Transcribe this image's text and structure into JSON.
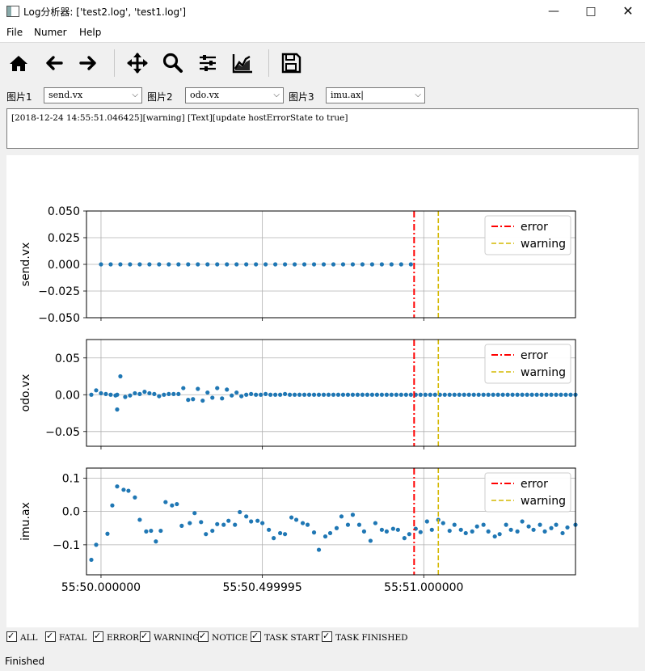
{
  "window": {
    "title": "Log分析器: ['test2.log', 'test1.log']"
  },
  "menu": [
    "File",
    "Numer",
    "Help"
  ],
  "toolbar": {
    "icons": [
      "home-icon",
      "back-arrow-icon",
      "forward-arrow-icon",
      "pan-icon",
      "zoom-icon",
      "subplots-icon",
      "edit-axes-icon",
      "save-icon"
    ]
  },
  "selectors": [
    {
      "label": "图片1",
      "value": "send.vx"
    },
    {
      "label": "图片2",
      "value": "odo.vx"
    },
    {
      "label": "图片3",
      "value": "imu.ax|"
    }
  ],
  "log_text": "[2018-12-24 14:55:51.046425][warning] [Text][update hostErrorState to true]",
  "filters": [
    "ALL",
    "FATAL",
    "ERROR",
    "WARNING",
    "NOTICE",
    "TASK START",
    "TASK FINISHED"
  ],
  "status": "Finished",
  "colors": {
    "points": "#1f77b4",
    "error": "#ff0000",
    "warning": "#d4b800"
  },
  "chart_data": [
    {
      "type": "scatter",
      "ylabel": "send.vx",
      "ylim": [
        -0.05,
        0.05
      ],
      "yticks": [
        "0.050",
        "0.025",
        "0.000",
        "−0.025",
        "−0.050"
      ],
      "x": [
        0.0,
        0.03,
        0.06,
        0.09,
        0.12,
        0.15,
        0.18,
        0.21,
        0.24,
        0.27,
        0.3,
        0.33,
        0.36,
        0.39,
        0.42,
        0.45,
        0.48,
        0.51,
        0.54,
        0.57,
        0.6,
        0.63,
        0.66,
        0.69,
        0.72,
        0.75,
        0.78,
        0.81,
        0.84,
        0.87,
        0.9,
        0.93,
        0.96
      ],
      "y": [
        0,
        0,
        0,
        0,
        0,
        0,
        0,
        0,
        0,
        0,
        0,
        0,
        0,
        0,
        0,
        0,
        0,
        0,
        0,
        0,
        0,
        0,
        0,
        0,
        0,
        0,
        0,
        0,
        0,
        0,
        0,
        0,
        0
      ],
      "vlines": [
        {
          "name": "error",
          "x": 0.97
        },
        {
          "name": "warning",
          "x": 1.045
        }
      ],
      "legend": [
        "error",
        "warning"
      ],
      "legend_position": "upper-right",
      "grid": true
    },
    {
      "type": "scatter",
      "ylabel": "odo.vx",
      "ylim": [
        -0.07,
        0.075
      ],
      "yticks": [
        "0.05",
        "0.00",
        "−0.05"
      ],
      "x": [
        -0.03,
        -0.015,
        0.0,
        0.015,
        0.03,
        0.045,
        0.06,
        0.05,
        0.05,
        0.075,
        0.09,
        0.105,
        0.12,
        0.135,
        0.15,
        0.165,
        0.18,
        0.195,
        0.21,
        0.225,
        0.24,
        0.255,
        0.27,
        0.285,
        0.3,
        0.315,
        0.33,
        0.345,
        0.36,
        0.375,
        0.39,
        0.405,
        0.42,
        0.435,
        0.45,
        0.465,
        0.48,
        0.495,
        0.51,
        0.525,
        0.54,
        0.555,
        0.57,
        0.585,
        0.6,
        0.615,
        0.63,
        0.645,
        0.66,
        0.675,
        0.69,
        0.705,
        0.72,
        0.735,
        0.75,
        0.765,
        0.78,
        0.795,
        0.81,
        0.825,
        0.84,
        0.855,
        0.87,
        0.885,
        0.9,
        0.915,
        0.93,
        0.945,
        0.96,
        0.975,
        0.99,
        1.005,
        1.02,
        1.035,
        1.05,
        1.065,
        1.08,
        1.095,
        1.11,
        1.125,
        1.14,
        1.155,
        1.17,
        1.185,
        1.2,
        1.215,
        1.23,
        1.245,
        1.26,
        1.275,
        1.29,
        1.305,
        1.32,
        1.335,
        1.35,
        1.365,
        1.38,
        1.395,
        1.41,
        1.425,
        1.44,
        1.455,
        1.47
      ],
      "y": [
        0.0,
        0.006,
        0.002,
        0.001,
        0.0,
        -0.001,
        0.025,
        -0.02,
        0.0,
        -0.003,
        -0.001,
        0.002,
        0.001,
        0.004,
        0.002,
        0.001,
        -0.002,
        0.0,
        0.001,
        0.001,
        0.001,
        0.009,
        -0.007,
        -0.006,
        0.008,
        -0.008,
        0.003,
        -0.004,
        0.009,
        -0.005,
        0.007,
        -0.001,
        0.003,
        -0.002,
        0.0,
        0.001,
        0.0,
        0.0,
        0.001,
        0.0,
        0.0,
        0.0,
        0.001,
        0.0,
        0.0,
        0.0,
        0.0,
        0.0,
        0.0,
        0.0,
        0.0,
        0.0,
        0.0,
        0.0,
        0.0,
        0.0,
        0.0,
        0.0,
        0.0,
        0.0,
        0.0,
        0.0,
        0.0,
        0.0,
        0.0,
        0.0,
        0.0,
        0.0,
        0.0,
        0.0,
        0.0,
        0.0,
        0.0,
        0.0,
        0.0,
        0.0,
        0.0,
        0.0,
        0.0,
        0.0,
        0.0,
        0.0,
        0.0,
        0.0,
        0.0,
        0.0,
        0.0,
        0.0,
        0.0,
        0.0,
        0.0,
        0.0,
        0.0,
        0.0,
        0.0,
        0.0,
        0.0,
        0.0,
        0.0,
        0.0,
        0.0,
        0.0,
        0.0
      ],
      "vlines": [
        {
          "name": "error",
          "x": 0.97
        },
        {
          "name": "warning",
          "x": 1.045
        }
      ],
      "legend": [
        "error",
        "warning"
      ],
      "legend_position": "upper-right",
      "grid": true
    },
    {
      "type": "scatter",
      "ylabel": "imu.ax",
      "ylim": [
        -0.19,
        0.13
      ],
      "yticks": [
        "0.1",
        "0.0",
        "−0.1"
      ],
      "xticks": [
        "55:50.000000",
        "55:50.499995",
        "55:51.000000"
      ],
      "xtick_values": [
        0.0,
        0.5,
        1.0
      ],
      "xlim": [
        -0.045,
        1.47
      ],
      "x": [
        -0.03,
        -0.015,
        0.02,
        0.035,
        0.05,
        0.07,
        0.085,
        0.105,
        0.12,
        0.14,
        0.155,
        0.17,
        0.185,
        0.2,
        0.22,
        0.235,
        0.25,
        0.275,
        0.29,
        0.31,
        0.325,
        0.345,
        0.36,
        0.38,
        0.395,
        0.415,
        0.43,
        0.45,
        0.465,
        0.485,
        0.5,
        0.52,
        0.535,
        0.555,
        0.57,
        0.59,
        0.605,
        0.625,
        0.64,
        0.66,
        0.675,
        0.695,
        0.71,
        0.73,
        0.745,
        0.765,
        0.78,
        0.8,
        0.815,
        0.835,
        0.85,
        0.87,
        0.885,
        0.905,
        0.92,
        0.94,
        0.955,
        0.975,
        0.99,
        1.01,
        1.025,
        1.045,
        1.06,
        1.08,
        1.095,
        1.115,
        1.13,
        1.15,
        1.165,
        1.185,
        1.2,
        1.22,
        1.235,
        1.255,
        1.27,
        1.29,
        1.305,
        1.325,
        1.34,
        1.36,
        1.375,
        1.395,
        1.41,
        1.43,
        1.445,
        1.47
      ],
      "y": [
        -0.145,
        -0.1,
        -0.067,
        0.018,
        0.075,
        0.065,
        0.062,
        0.042,
        -0.025,
        -0.06,
        -0.058,
        -0.09,
        -0.058,
        0.028,
        0.018,
        0.022,
        -0.043,
        -0.035,
        -0.005,
        -0.032,
        -0.068,
        -0.058,
        -0.038,
        -0.04,
        -0.028,
        -0.04,
        -0.002,
        -0.015,
        -0.03,
        -0.028,
        -0.035,
        -0.055,
        -0.08,
        -0.065,
        -0.068,
        -0.018,
        -0.025,
        -0.035,
        -0.04,
        -0.063,
        -0.115,
        -0.075,
        -0.065,
        -0.05,
        -0.015,
        -0.04,
        -0.01,
        -0.04,
        -0.06,
        -0.088,
        -0.035,
        -0.055,
        -0.06,
        -0.052,
        -0.055,
        -0.08,
        -0.068,
        -0.052,
        -0.062,
        -0.03,
        -0.055,
        -0.025,
        -0.035,
        -0.058,
        -0.04,
        -0.055,
        -0.065,
        -0.06,
        -0.045,
        -0.04,
        -0.06,
        -0.075,
        -0.068,
        -0.04,
        -0.055,
        -0.06,
        -0.03,
        -0.045,
        -0.055,
        -0.04,
        -0.06,
        -0.05,
        -0.04,
        -0.065,
        -0.048,
        -0.04
      ],
      "vlines": [
        {
          "name": "error",
          "x": 0.97
        },
        {
          "name": "warning",
          "x": 1.045
        }
      ],
      "legend": [
        "error",
        "warning"
      ],
      "legend_position": "upper-right",
      "grid": true
    }
  ]
}
